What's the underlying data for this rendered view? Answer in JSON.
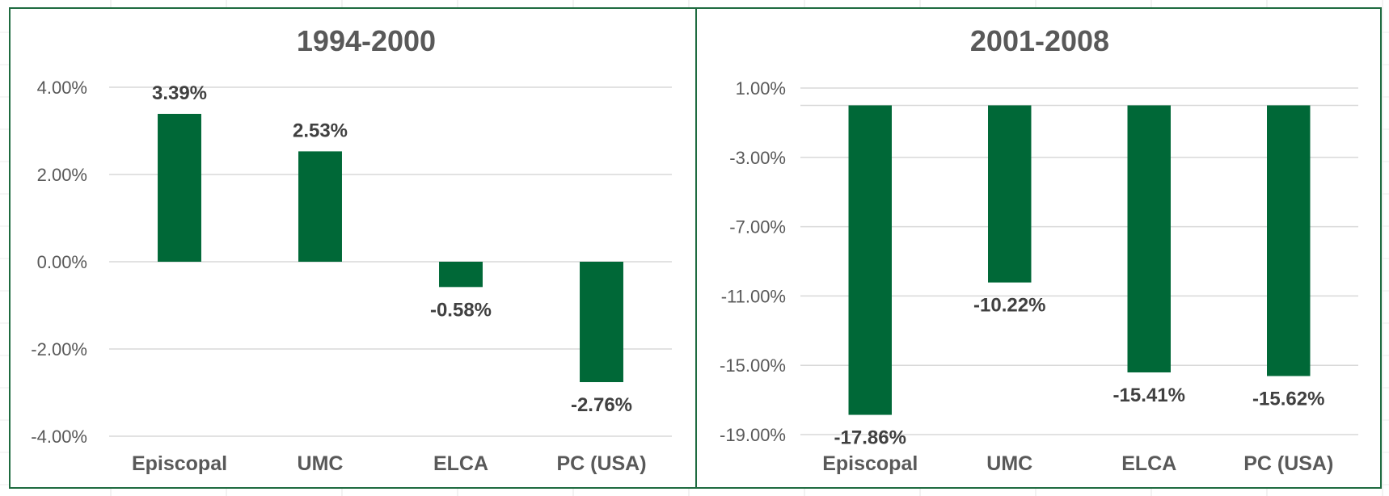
{
  "chart_data": [
    {
      "type": "bar",
      "title": "1994-2000",
      "categories": [
        "Episcopal",
        "UMC",
        "ELCA",
        "PC (USA)"
      ],
      "values": [
        3.39,
        2.53,
        -0.58,
        -2.76
      ],
      "value_labels": [
        "3.39%",
        "2.53%",
        "-0.58%",
        "-2.76%"
      ],
      "ylim": [
        -4,
        4
      ],
      "yticks": [
        4,
        2,
        0,
        -2,
        -4
      ],
      "ytick_labels": [
        "4.00%",
        "2.00%",
        "0.00%",
        "-2.00%",
        "-4.00%"
      ],
      "baseline": 0,
      "grid": true,
      "xlabel": "",
      "ylabel": "",
      "bar_color": "#006837"
    },
    {
      "type": "bar",
      "title": "2001-2008",
      "categories": [
        "Episcopal",
        "UMC",
        "ELCA",
        "PC (USA)"
      ],
      "values": [
        -17.86,
        -10.22,
        -15.41,
        -15.62
      ],
      "value_labels": [
        "-17.86%",
        "-10.22%",
        "-15.41%",
        "-15.62%"
      ],
      "ylim": [
        -19,
        1
      ],
      "yticks": [
        1,
        -3,
        -7,
        -11,
        -15,
        -19
      ],
      "ytick_labels": [
        "1.00%",
        "-3.00%",
        "-7.00%",
        "-11.00%",
        "-15.00%",
        "-19.00%"
      ],
      "baseline": 0,
      "grid": true,
      "xlabel": "",
      "ylabel": "",
      "bar_color": "#006837"
    }
  ],
  "colors": {
    "border": "#1e6b40",
    "bar": "#006837",
    "grid": "#d9d9d9",
    "text": "#595959"
  }
}
